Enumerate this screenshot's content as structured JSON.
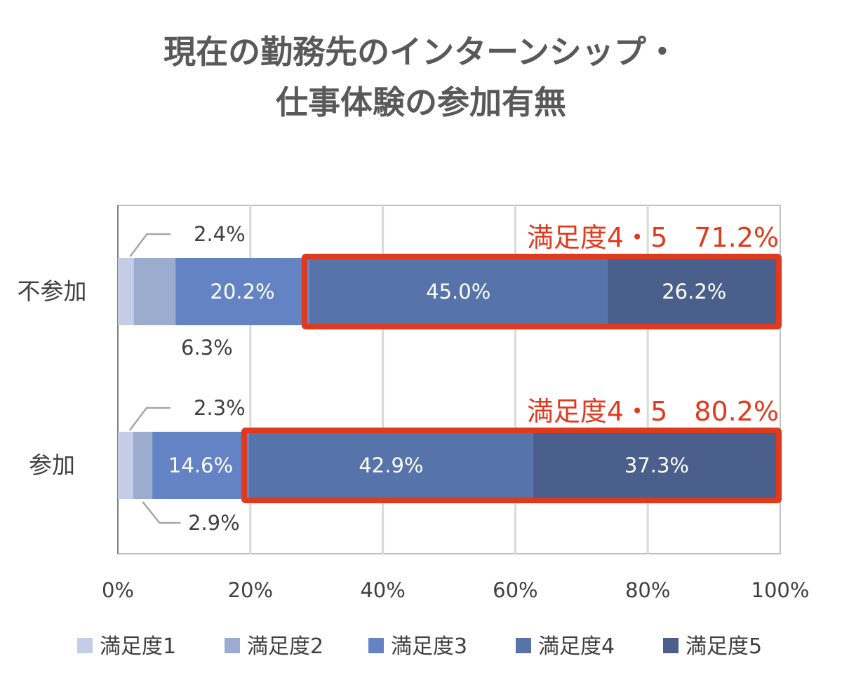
{
  "chart_data": {
    "type": "bar",
    "stacked": true,
    "orientation": "horizontal",
    "percent_axis": true,
    "title_lines": [
      "現在の勤務先のインターンシップ・",
      "仕事体験の参加有無"
    ],
    "categories": [
      "不参加",
      "参加"
    ],
    "series": [
      {
        "name": "満足度1",
        "color": "#c5cde6",
        "values": [
          2.4,
          2.3
        ],
        "labels": [
          "2.4%",
          "2.3%"
        ]
      },
      {
        "name": "満足度2",
        "color": "#9caccf",
        "values": [
          6.3,
          2.9
        ],
        "labels": [
          "6.3%",
          "2.9%"
        ]
      },
      {
        "name": "満足度3",
        "color": "#6483c4",
        "values": [
          20.2,
          14.6
        ],
        "labels": [
          "20.2%",
          "14.6%"
        ]
      },
      {
        "name": "満足度4",
        "color": "#5673aa",
        "values": [
          45.0,
          42.9
        ],
        "labels": [
          "45.0%",
          "42.9%"
        ]
      },
      {
        "name": "満足度5",
        "color": "#4a5f8c",
        "values": [
          26.2,
          37.3
        ],
        "labels": [
          "26.2%",
          "37.3%"
        ]
      }
    ],
    "x_ticks": [
      "0%",
      "20%",
      "40%",
      "60%",
      "80%",
      "100%"
    ],
    "xlim": [
      0,
      100
    ],
    "grid": true,
    "legend_position": "bottom",
    "highlights": [
      "満足度4・5　71.2%",
      "満足度4・5　80.2%"
    ],
    "highlight_color": "#e03a1e"
  }
}
